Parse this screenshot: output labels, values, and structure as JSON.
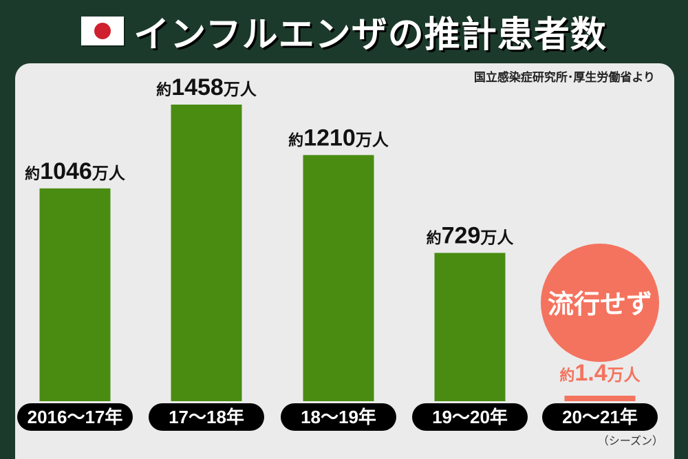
{
  "header": {
    "title": "インフルエンザの推計患者数",
    "flag_icon": "japan-flag-icon"
  },
  "source": "国立感染症研究所･厚生労働省より",
  "season_note": "（シーズン）",
  "chart_data": {
    "type": "bar",
    "title": "インフルエンザの推計患者数",
    "unit": "万人",
    "categories": [
      "2016～17年",
      "17～18年",
      "18～19年",
      "19～20年",
      "20～21年"
    ],
    "values": [
      1046,
      1458,
      1210,
      729,
      1.4
    ],
    "value_labels": [
      {
        "prefix": "約",
        "number": "1046",
        "unit": "万人"
      },
      {
        "prefix": "約",
        "number": "1458",
        "unit": "万人"
      },
      {
        "prefix": "約",
        "number": "1210",
        "unit": "万人"
      },
      {
        "prefix": "約",
        "number": "729",
        "unit": "万人"
      },
      {
        "prefix": "約",
        "number": "1.4",
        "unit": "万人"
      }
    ],
    "annotation": "流行せず",
    "annotation_index": 4,
    "ylim": [
      0,
      1458
    ],
    "grid": false,
    "colors": {
      "bar": "#4a8c12",
      "highlight": "#f4735e",
      "label_bg": "#000000",
      "label_text": "#ffffff",
      "value_text": "#111111"
    }
  }
}
